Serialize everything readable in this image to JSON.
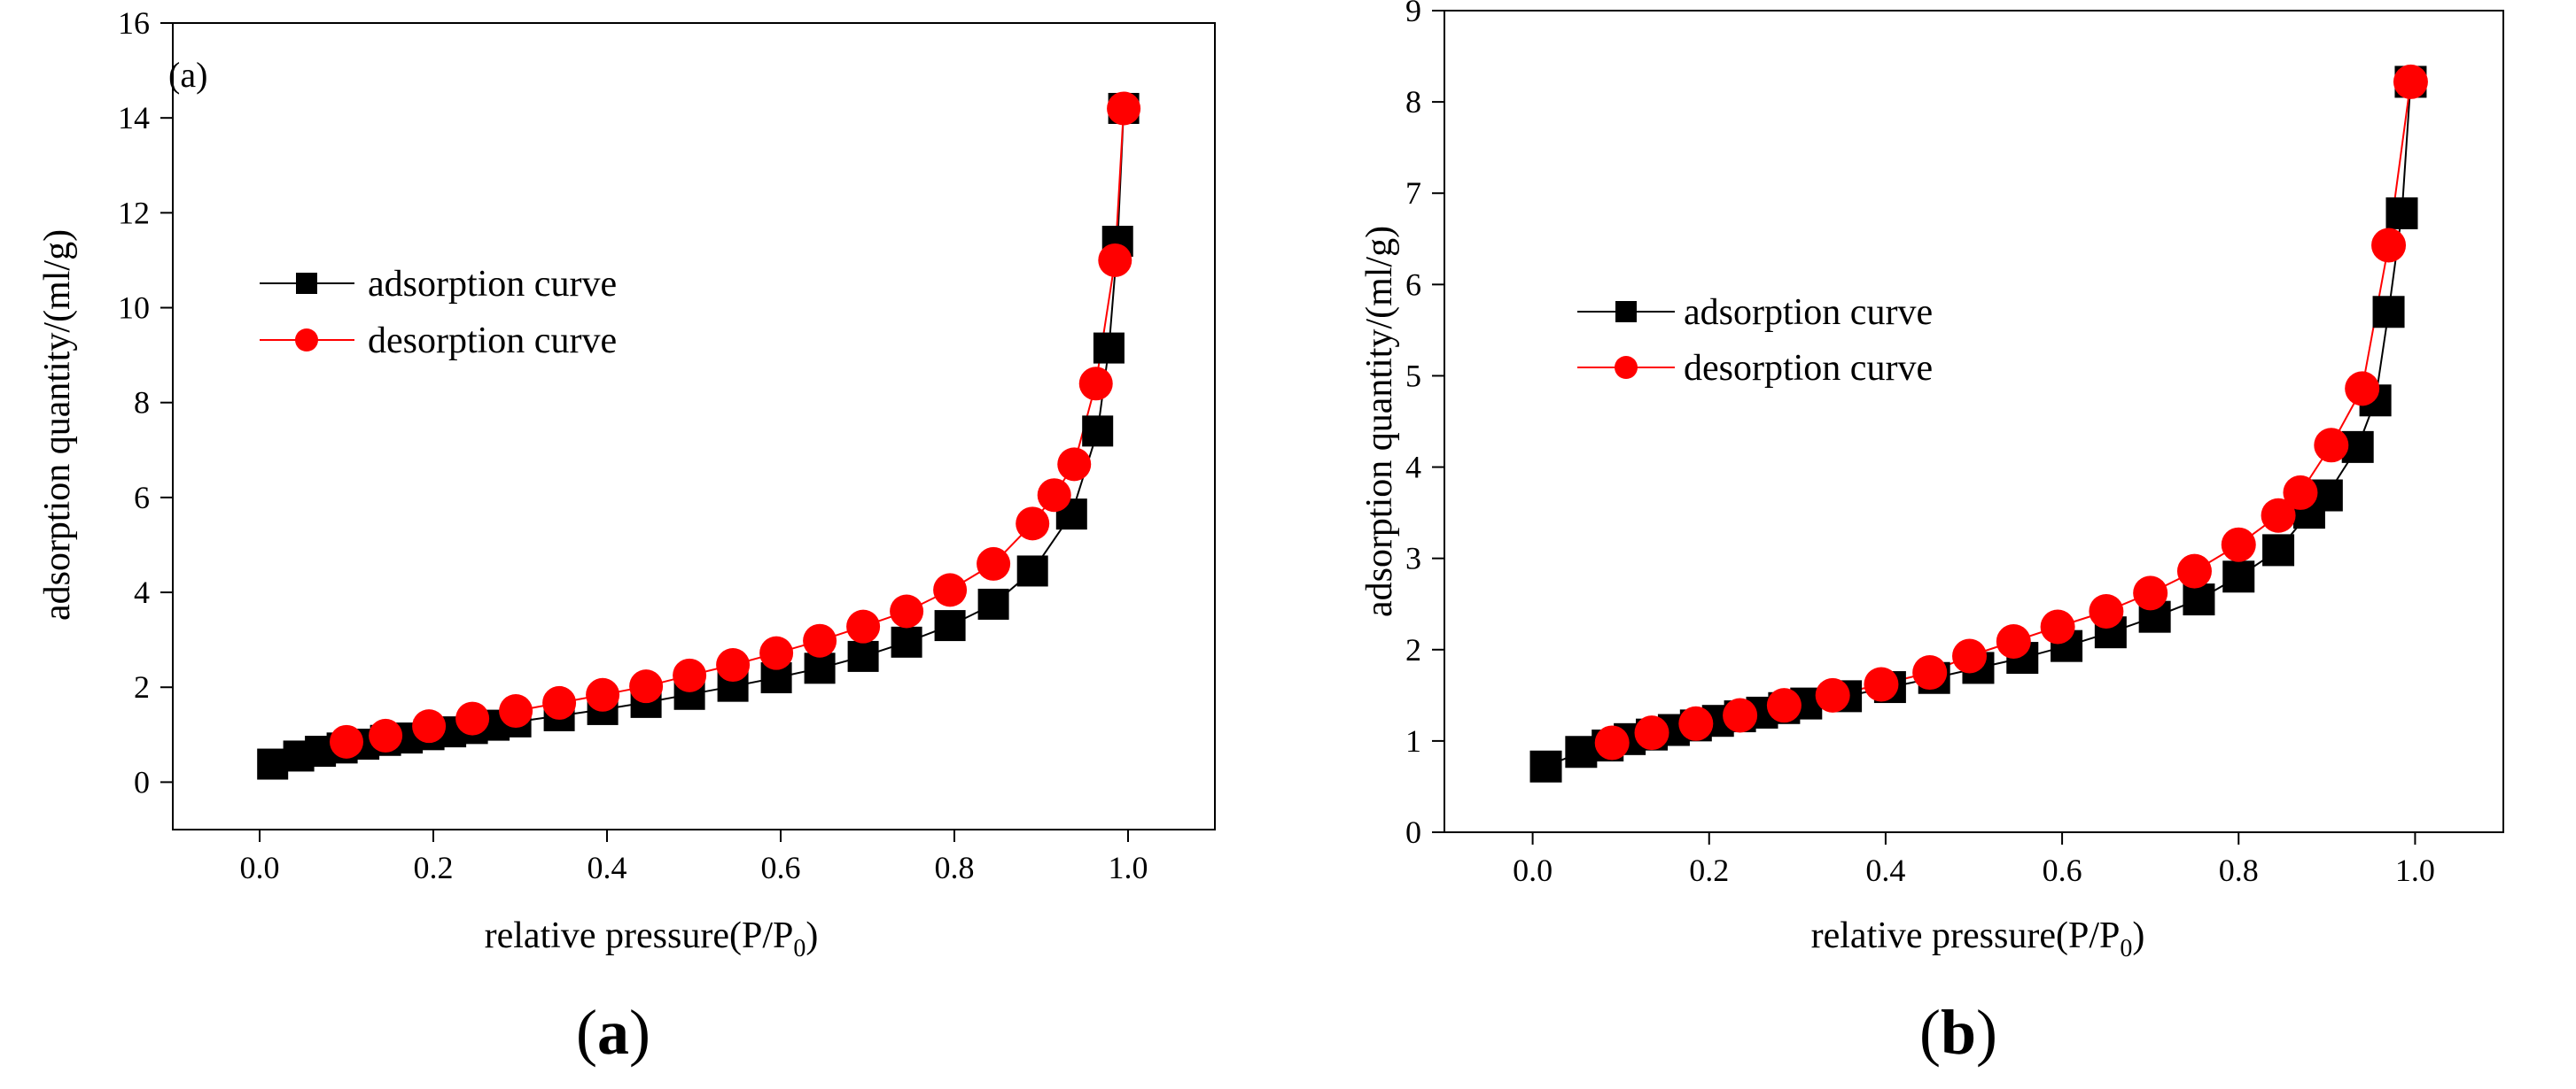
{
  "figure": {
    "panel_labels": [
      "a",
      "b"
    ]
  },
  "chart_data": [
    {
      "type": "line",
      "panel_tag": "(a)",
      "xlabel": "relative pressure(P/P",
      "xlabel_sub": "0",
      "xlabel_end": ")",
      "ylabel": "adsorption quantity/(ml/g)",
      "xlim": [
        -0.1,
        1.1
      ],
      "ylim": [
        -1,
        16
      ],
      "xticks": [
        0.0,
        0.2,
        0.4,
        0.6,
        0.8,
        1.0
      ],
      "xtick_labels": [
        "0.0",
        "0.2",
        "0.4",
        "0.6",
        "0.8",
        "1.0"
      ],
      "yticks": [
        0,
        2,
        4,
        6,
        8,
        10,
        12,
        14,
        16
      ],
      "ytick_labels": [
        "0",
        "2",
        "4",
        "6",
        "8",
        "10",
        "12",
        "14",
        "16"
      ],
      "grid": false,
      "legend_position": "upper-left",
      "series": [
        {
          "name": "adsorption curve",
          "color": "#000000",
          "marker": "square",
          "x": [
            0.015,
            0.045,
            0.07,
            0.095,
            0.12,
            0.145,
            0.17,
            0.195,
            0.22,
            0.245,
            0.27,
            0.295,
            0.345,
            0.395,
            0.445,
            0.495,
            0.545,
            0.595,
            0.645,
            0.695,
            0.745,
            0.795,
            0.845,
            0.89,
            0.935,
            0.965,
            0.978,
            0.988,
            0.995
          ],
          "y": [
            0.38,
            0.55,
            0.65,
            0.72,
            0.8,
            0.88,
            0.93,
            1.0,
            1.06,
            1.13,
            1.2,
            1.27,
            1.4,
            1.53,
            1.68,
            1.85,
            2.02,
            2.2,
            2.4,
            2.65,
            2.95,
            3.3,
            3.75,
            4.45,
            5.65,
            7.4,
            9.15,
            11.4,
            14.2
          ]
        },
        {
          "name": "desorption curve",
          "color": "#ff0000",
          "marker": "circle",
          "x": [
            0.995,
            0.985,
            0.963,
            0.938,
            0.915,
            0.89,
            0.845,
            0.795,
            0.745,
            0.695,
            0.645,
            0.595,
            0.545,
            0.495,
            0.445,
            0.395,
            0.345,
            0.295,
            0.245,
            0.195,
            0.145,
            0.1
          ],
          "y": [
            14.2,
            11.0,
            8.4,
            6.7,
            6.05,
            5.45,
            4.6,
            4.05,
            3.6,
            3.28,
            2.98,
            2.72,
            2.47,
            2.25,
            2.02,
            1.84,
            1.67,
            1.5,
            1.34,
            1.18,
            0.98,
            0.85
          ]
        }
      ]
    },
    {
      "type": "line",
      "xlabel": "relative pressure(P/P",
      "xlabel_sub": "0",
      "xlabel_end": ")",
      "ylabel": "adsorption quantity/(ml/g)",
      "xlim": [
        -0.1,
        1.1
      ],
      "ylim": [
        0,
        9
      ],
      "xticks": [
        0.0,
        0.2,
        0.4,
        0.6,
        0.8,
        1.0
      ],
      "xtick_labels": [
        "0.0",
        "0.2",
        "0.4",
        "0.6",
        "0.8",
        "1.0"
      ],
      "yticks": [
        0,
        1,
        2,
        3,
        4,
        5,
        6,
        7,
        8,
        9
      ],
      "ytick_labels": [
        "0",
        "1",
        "2",
        "3",
        "4",
        "5",
        "6",
        "7",
        "8",
        "9"
      ],
      "grid": false,
      "legend_position": "upper-left",
      "series": [
        {
          "name": "adsorption curve",
          "color": "#000000",
          "marker": "square",
          "x": [
            0.015,
            0.055,
            0.085,
            0.11,
            0.135,
            0.16,
            0.185,
            0.21,
            0.235,
            0.26,
            0.285,
            0.31,
            0.355,
            0.405,
            0.455,
            0.505,
            0.555,
            0.605,
            0.655,
            0.705,
            0.755,
            0.8,
            0.845,
            0.88,
            0.9,
            0.935,
            0.955,
            0.97,
            0.985,
            0.995
          ],
          "y": [
            0.72,
            0.88,
            0.95,
            1.02,
            1.07,
            1.12,
            1.17,
            1.22,
            1.27,
            1.31,
            1.36,
            1.41,
            1.49,
            1.59,
            1.69,
            1.8,
            1.91,
            2.04,
            2.19,
            2.36,
            2.55,
            2.8,
            3.09,
            3.5,
            3.69,
            4.22,
            4.73,
            5.7,
            6.78,
            8.22
          ]
        },
        {
          "name": "desorption curve",
          "color": "#ff0000",
          "marker": "circle",
          "x": [
            0.995,
            0.97,
            0.94,
            0.905,
            0.87,
            0.845,
            0.8,
            0.75,
            0.7,
            0.65,
            0.595,
            0.545,
            0.495,
            0.45,
            0.395,
            0.34,
            0.285,
            0.235,
            0.185,
            0.135,
            0.09
          ],
          "y": [
            8.22,
            6.43,
            4.86,
            4.24,
            3.72,
            3.47,
            3.15,
            2.86,
            2.62,
            2.42,
            2.25,
            2.09,
            1.93,
            1.75,
            1.62,
            1.5,
            1.39,
            1.28,
            1.19,
            1.09,
            0.98
          ]
        }
      ]
    }
  ]
}
